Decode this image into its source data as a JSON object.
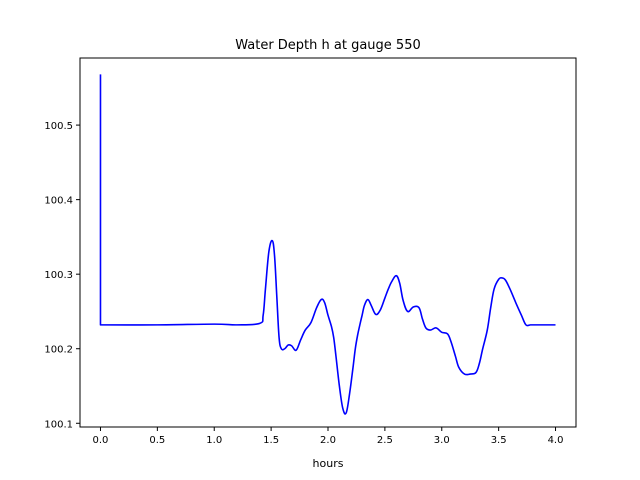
{
  "chart_data": {
    "type": "line",
    "title": "Water Depth h at gauge 550",
    "xlabel": "hours",
    "ylabel": "",
    "xlim": [
      -0.18,
      4.18
    ],
    "ylim": [
      100.095,
      100.59
    ],
    "xticks": [
      0.0,
      0.5,
      1.0,
      1.5,
      2.0,
      2.5,
      3.0,
      3.5,
      4.0
    ],
    "xtick_labels": [
      "0.0",
      "0.5",
      "1.0",
      "1.5",
      "2.0",
      "2.5",
      "3.0",
      "3.5",
      "4.0"
    ],
    "yticks": [
      100.1,
      100.2,
      100.3,
      100.4,
      100.5
    ],
    "ytick_labels": [
      "100.1",
      "100.2",
      "100.3",
      "100.4",
      "100.5"
    ],
    "grid": false,
    "series": [
      {
        "color": "#0000ff",
        "x": [
          0.0,
          0.0,
          0.0,
          0.5,
          1.0,
          1.2,
          1.4,
          1.43,
          1.45,
          1.48,
          1.51,
          1.53,
          1.55,
          1.57,
          1.59,
          1.62,
          1.65,
          1.68,
          1.72,
          1.76,
          1.8,
          1.85,
          1.9,
          1.94,
          1.97,
          2.0,
          2.03,
          2.05,
          2.07,
          2.1,
          2.13,
          2.16,
          2.19,
          2.22,
          2.24,
          2.26,
          2.28,
          2.3,
          2.32,
          2.35,
          2.38,
          2.42,
          2.46,
          2.5,
          2.53,
          2.56,
          2.6,
          2.63,
          2.66,
          2.7,
          2.75,
          2.8,
          2.83,
          2.86,
          2.9,
          2.95,
          3.0,
          3.05,
          3.08,
          3.12,
          3.15,
          3.2,
          3.25,
          3.3,
          3.33,
          3.36,
          3.4,
          3.43,
          3.46,
          3.5,
          3.53,
          3.56,
          3.6,
          3.65,
          3.7,
          3.74,
          3.78,
          3.82,
          3.85,
          3.88,
          3.92,
          3.96,
          4.0
        ],
        "y": [
          100.568,
          100.232,
          100.232,
          100.232,
          100.233,
          100.232,
          100.234,
          100.245,
          100.28,
          100.33,
          100.345,
          100.325,
          100.27,
          100.215,
          100.2,
          100.2,
          100.205,
          100.204,
          100.198,
          100.212,
          100.225,
          100.235,
          100.255,
          100.266,
          100.262,
          100.245,
          100.23,
          100.215,
          100.19,
          100.15,
          100.12,
          100.114,
          100.14,
          100.175,
          100.2,
          100.218,
          100.232,
          100.245,
          100.258,
          100.266,
          100.258,
          100.246,
          100.252,
          100.268,
          100.28,
          100.29,
          100.298,
          100.288,
          100.265,
          100.25,
          100.256,
          100.255,
          100.24,
          100.228,
          100.225,
          100.228,
          100.222,
          100.22,
          100.21,
          100.19,
          100.175,
          100.166,
          100.166,
          100.168,
          100.18,
          100.2,
          100.225,
          100.255,
          100.28,
          100.293,
          100.295,
          100.292,
          100.28,
          100.262,
          100.245,
          100.232,
          100.232,
          100.232,
          100.232,
          100.232,
          100.232,
          100.232,
          100.232
        ]
      }
    ]
  }
}
